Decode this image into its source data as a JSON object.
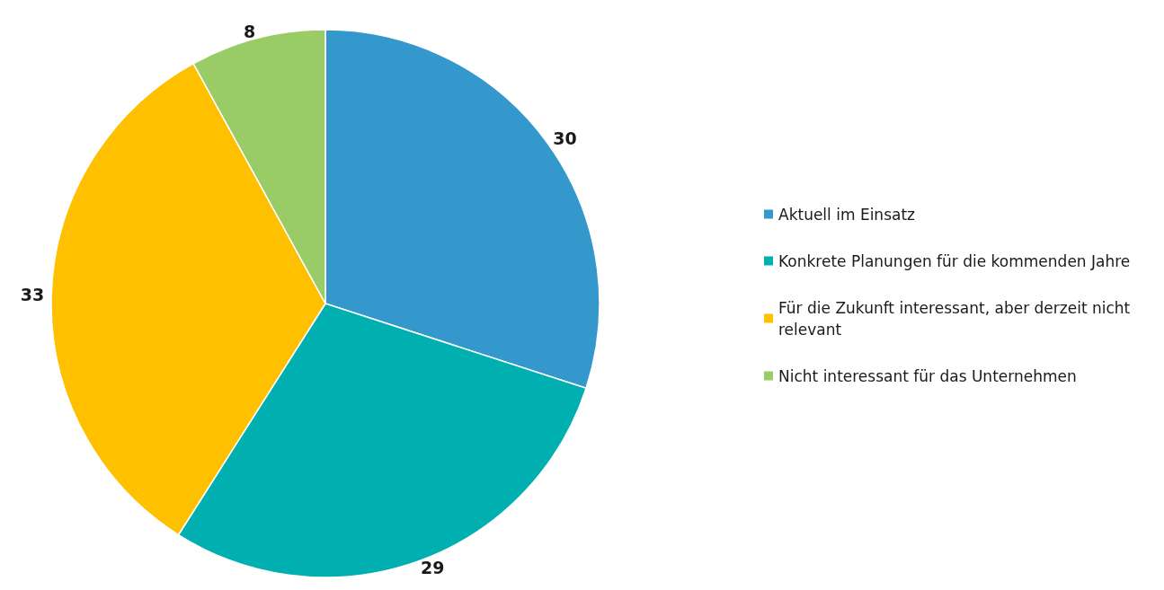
{
  "chart_data": {
    "type": "pie",
    "categories": [
      "Aktuell im Einsatz",
      "Konkrete Planungen für die kommenden Jahre",
      "Für die Zukunft interessant, aber derzeit nicht relevant",
      "Nicht interessant für das Unternehmen"
    ],
    "values": [
      30,
      29,
      33,
      8
    ],
    "colors": [
      "#3498cc",
      "#00b0b0",
      "#ffc000",
      "#99cc66"
    ],
    "data_labels": true,
    "legend": "right"
  }
}
